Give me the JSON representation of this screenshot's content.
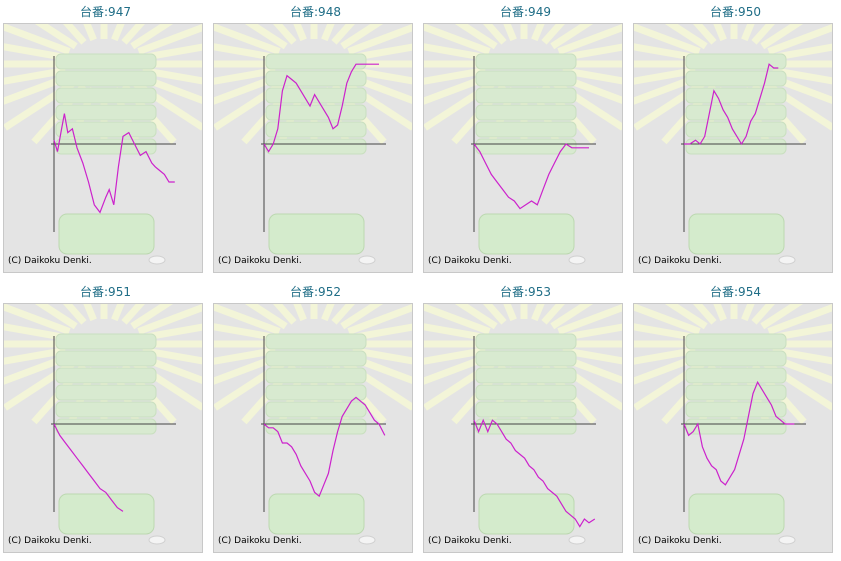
{
  "copyright": "(C) Daikoku Denki.",
  "colors": {
    "line": "#cc22cc",
    "axis": "#444444",
    "title": "#1f6d86",
    "panel_bg": "#e4e4e4"
  },
  "chart_data": [
    {
      "type": "line",
      "title": "台番:947",
      "x": [
        0,
        3,
        6,
        9,
        12,
        16,
        20,
        25,
        30,
        35,
        40,
        45,
        48,
        52,
        56,
        60,
        65,
        70,
        75,
        80,
        85,
        88,
        92,
        96,
        100,
        105
      ],
      "y": [
        0.1,
        -0.2,
        0.3,
        0.8,
        0.3,
        0.4,
        -0.1,
        -0.5,
        -1.0,
        -1.6,
        -1.8,
        -1.4,
        -1.2,
        -1.6,
        -0.6,
        0.2,
        0.3,
        0.0,
        -0.3,
        -0.2,
        -0.5,
        -0.6,
        -0.7,
        -0.8,
        -1.0,
        -1.0
      ]
    },
    {
      "type": "line",
      "title": "台番:948",
      "x": [
        0,
        4,
        8,
        12,
        16,
        20,
        24,
        28,
        32,
        36,
        40,
        44,
        48,
        52,
        56,
        60,
        64,
        68,
        72,
        76,
        80,
        84,
        88,
        92,
        96,
        100
      ],
      "y": [
        0.0,
        -0.2,
        0.0,
        0.4,
        1.4,
        1.8,
        1.7,
        1.6,
        1.4,
        1.2,
        1.0,
        1.3,
        1.1,
        0.9,
        0.7,
        0.4,
        0.5,
        1.0,
        1.6,
        1.9,
        2.1,
        2.1,
        2.1,
        2.1,
        2.1,
        2.1
      ]
    },
    {
      "type": "line",
      "title": "台番:949",
      "x": [
        0,
        5,
        10,
        15,
        20,
        25,
        30,
        35,
        40,
        45,
        50,
        55,
        60,
        65,
        70,
        75,
        80,
        85,
        90,
        95,
        100
      ],
      "y": [
        0.0,
        -0.2,
        -0.5,
        -0.8,
        -1.0,
        -1.2,
        -1.4,
        -1.5,
        -1.7,
        -1.6,
        -1.5,
        -1.6,
        -1.2,
        -0.8,
        -0.5,
        -0.2,
        0.0,
        -0.1,
        -0.1,
        -0.1,
        -0.1
      ]
    },
    {
      "type": "line",
      "title": "台番:950",
      "x": [
        0,
        5,
        10,
        14,
        18,
        22,
        26,
        30,
        34,
        38,
        42,
        46,
        50,
        54,
        58,
        62,
        66,
        70,
        74,
        78,
        82
      ],
      "y": [
        0.0,
        0.0,
        0.1,
        0.0,
        0.2,
        0.8,
        1.4,
        1.2,
        0.9,
        0.7,
        0.4,
        0.2,
        0.0,
        0.2,
        0.6,
        0.8,
        1.2,
        1.6,
        2.1,
        2.0,
        2.0
      ]
    },
    {
      "type": "line",
      "title": "台番:951",
      "x": [
        0,
        5,
        10,
        15,
        20,
        25,
        30,
        35,
        40,
        45,
        50,
        55,
        60
      ],
      "y": [
        0.0,
        -0.3,
        -0.5,
        -0.7,
        -0.9,
        -1.1,
        -1.3,
        -1.5,
        -1.7,
        -1.8,
        -2.0,
        -2.2,
        -2.3
      ]
    },
    {
      "type": "line",
      "title": "台番:952",
      "x": [
        0,
        4,
        8,
        12,
        16,
        20,
        24,
        28,
        32,
        36,
        40,
        44,
        48,
        52,
        56,
        60,
        64,
        68,
        72,
        76,
        80,
        84,
        88,
        92,
        96,
        100,
        105
      ],
      "y": [
        0.0,
        -0.1,
        -0.1,
        -0.2,
        -0.5,
        -0.5,
        -0.6,
        -0.8,
        -1.1,
        -1.3,
        -1.5,
        -1.8,
        -1.9,
        -1.6,
        -1.3,
        -0.7,
        -0.2,
        0.2,
        0.4,
        0.6,
        0.7,
        0.6,
        0.5,
        0.3,
        0.1,
        0.0,
        -0.3
      ]
    },
    {
      "type": "line",
      "title": "台番:953",
      "x": [
        0,
        4,
        8,
        12,
        16,
        20,
        24,
        28,
        32,
        36,
        40,
        44,
        48,
        52,
        56,
        60,
        64,
        68,
        72,
        76,
        80,
        84,
        88,
        92,
        96,
        100,
        105
      ],
      "y": [
        0.1,
        -0.2,
        0.1,
        -0.2,
        0.1,
        0.0,
        -0.2,
        -0.4,
        -0.5,
        -0.7,
        -0.8,
        -0.9,
        -1.1,
        -1.2,
        -1.4,
        -1.5,
        -1.7,
        -1.8,
        -1.9,
        -2.1,
        -2.3,
        -2.4,
        -2.5,
        -2.7,
        -2.5,
        -2.6,
        -2.5
      ]
    },
    {
      "type": "line",
      "title": "台番:954",
      "x": [
        0,
        4,
        8,
        12,
        16,
        20,
        24,
        28,
        32,
        36,
        40,
        44,
        48,
        52,
        56,
        60,
        64,
        68,
        72,
        76,
        80,
        84,
        88,
        92,
        96
      ],
      "y": [
        0.0,
        -0.3,
        -0.2,
        0.0,
        -0.6,
        -0.9,
        -1.1,
        -1.2,
        -1.5,
        -1.6,
        -1.4,
        -1.2,
        -0.8,
        -0.4,
        0.2,
        0.8,
        1.1,
        0.9,
        0.7,
        0.5,
        0.2,
        0.1,
        0.0,
        0.0,
        0.0
      ]
    }
  ]
}
